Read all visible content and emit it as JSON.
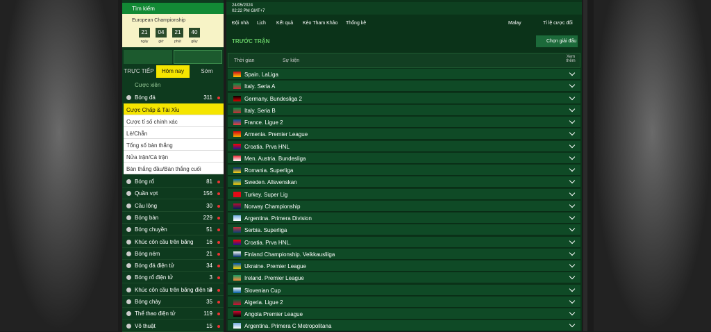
{
  "sidebar": {
    "search": "Tìm kiếm",
    "event": {
      "title": "European Championship",
      "countdown": [
        {
          "value": "21",
          "unit": "ngày"
        },
        {
          "value": "04",
          "unit": "giờ"
        },
        {
          "value": "21",
          "unit": "phút"
        },
        {
          "value": "40",
          "unit": "giây"
        }
      ]
    },
    "tabs": [
      "TRỰC TIẾP",
      "Hôm nay",
      "Sớm"
    ],
    "parlay": "Cược xiên",
    "football": {
      "name": "Bóng đá",
      "count": "311"
    },
    "submenu": [
      "Cược Chấp & Tài Xỉu",
      "Cược tỉ số chính xác",
      "Lẻ/Chẵn",
      "Tổng số bàn thắng",
      "Nửa trận/Cả trận",
      "Bàn thắng đầu/Bàn thắng cuối"
    ],
    "sports": [
      {
        "name": "Bóng rổ",
        "count": "81"
      },
      {
        "name": "Quần vợt",
        "count": "156"
      },
      {
        "name": "Cầu lông",
        "count": "30"
      },
      {
        "name": "Bóng bàn",
        "count": "229"
      },
      {
        "name": "Bóng chuyền",
        "count": "51"
      },
      {
        "name": "Khúc côn cầu trên băng",
        "count": "16"
      },
      {
        "name": "Bóng ném",
        "count": "21"
      },
      {
        "name": "Bóng đá điện tử",
        "count": "34"
      },
      {
        "name": "Bóng rổ điện tử",
        "count": "3"
      },
      {
        "name": "Khúc côn cầu trên băng điện tử",
        "count": "4"
      },
      {
        "name": "Bóng chày",
        "count": "35"
      },
      {
        "name": "Thể thao điện tử",
        "count": "119"
      },
      {
        "name": "Võ thuật",
        "count": "15"
      }
    ]
  },
  "main": {
    "date": "24/05/2024",
    "time": "02:22 PM GMT+7",
    "nav": [
      "Đội nhà",
      "Lịch",
      "Kết quả",
      "Kèo Tham Khảo",
      "Thống kê"
    ],
    "odds_type": "Malay",
    "odds_format": "Tỉ lệ cược đối",
    "section": "TRƯỚC TRẬN",
    "select_league": "Chọn giải đấu",
    "columns": [
      "Thời gian",
      "Sự kiện",
      "Xem thêm"
    ],
    "leagues": [
      "Spain. LaLiga",
      "Italy. Seria A",
      "Germany. Bundesliga 2",
      "Italy. Seria B",
      "France. Ligue 2",
      "Armenia. Premier League",
      "Croatia. Prva HNL",
      "Men. Austria. Bundesliga",
      "Romania. Superliga",
      "Sweden. Allsvenskan",
      "Turkey. Super Lig",
      "Norway Championship",
      "Argentina. Primera Division",
      "Serbia. Superliga",
      "Croatia. Prva HNL.",
      "Finland Championship. Veikkausliiga",
      "Ukraine. Premier League",
      "Ireland. Premier League",
      "Slovenian Cup",
      "Algeria. Ligue 2",
      "Angola Premier League",
      "Argentina. Primera C Metropolitana"
    ]
  }
}
